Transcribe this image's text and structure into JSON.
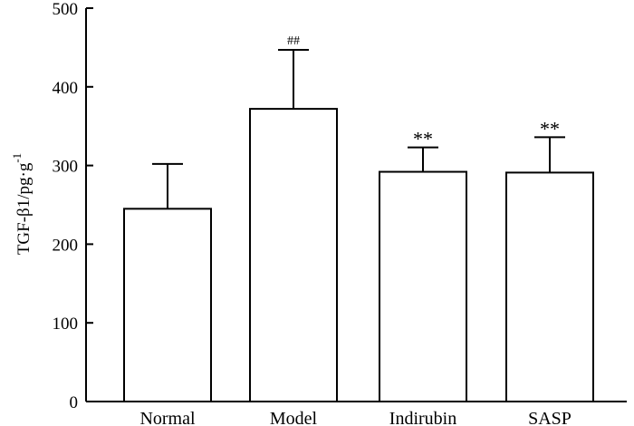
{
  "chart_data": {
    "type": "bar",
    "title": "",
    "xlabel": "",
    "ylabel": "TGF-β1/pg·g",
    "ylabel_superscript": "-1",
    "ylim": [
      0,
      500
    ],
    "yticks": [
      "0",
      "100",
      "200",
      "300",
      "400",
      "500"
    ],
    "categories": [
      "Normal",
      "Model",
      "Indirubin",
      "SASP"
    ],
    "values": [
      245,
      372,
      292,
      291
    ],
    "errors": [
      57,
      75,
      31,
      45
    ],
    "annotations": [
      "",
      "##",
      "**",
      "**"
    ],
    "grid": false
  }
}
